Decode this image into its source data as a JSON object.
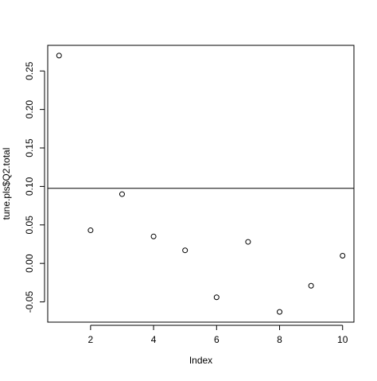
{
  "chart_data": {
    "type": "scatter",
    "title": "",
    "xlabel": "Index",
    "ylabel": "tune.pls$Q2.total",
    "x": [
      1,
      2,
      3,
      4,
      5,
      6,
      7,
      8,
      9,
      10
    ],
    "y": [
      0.27,
      0.043,
      0.09,
      0.035,
      0.017,
      -0.044,
      0.028,
      -0.063,
      -0.029,
      0.01
    ],
    "xlim": [
      0.64,
      10.36
    ],
    "ylim": [
      -0.0763,
      0.2833
    ],
    "xticks": [
      2,
      4,
      6,
      8,
      10
    ],
    "xtick_labels": [
      "2",
      "4",
      "6",
      "8",
      "10"
    ],
    "yticks": [
      -0.05,
      0.0,
      0.05,
      0.1,
      0.15,
      0.2,
      0.25
    ],
    "ytick_labels": [
      "-0.05",
      "0.00",
      "0.05",
      "0.10",
      "0.15",
      "0.20",
      "0.25"
    ],
    "hline": 0.0975,
    "marker": "open-circle",
    "grid": false,
    "legend": "none",
    "colors": {
      "points": "#000000",
      "axes": "#000000",
      "background": "#ffffff"
    }
  }
}
